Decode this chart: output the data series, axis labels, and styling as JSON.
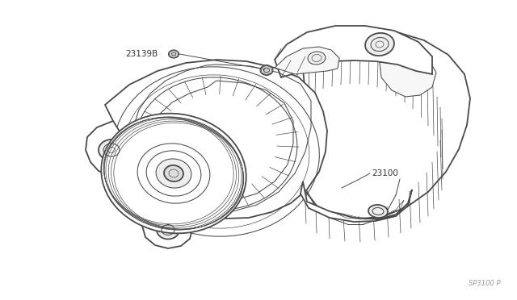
{
  "bg_color": "#ffffff",
  "line_color": "#4a4a4a",
  "label_23139B": "23139B",
  "label_23100": "23100",
  "label_watermark": "SP3100 P",
  "fig_width": 6.4,
  "fig_height": 3.72,
  "dpi": 100,
  "lw_outer": 1.3,
  "lw_inner": 0.75,
  "lw_thin": 0.5,
  "body_fill": "#ffffff",
  "body_fill2": "#f7f7f7"
}
